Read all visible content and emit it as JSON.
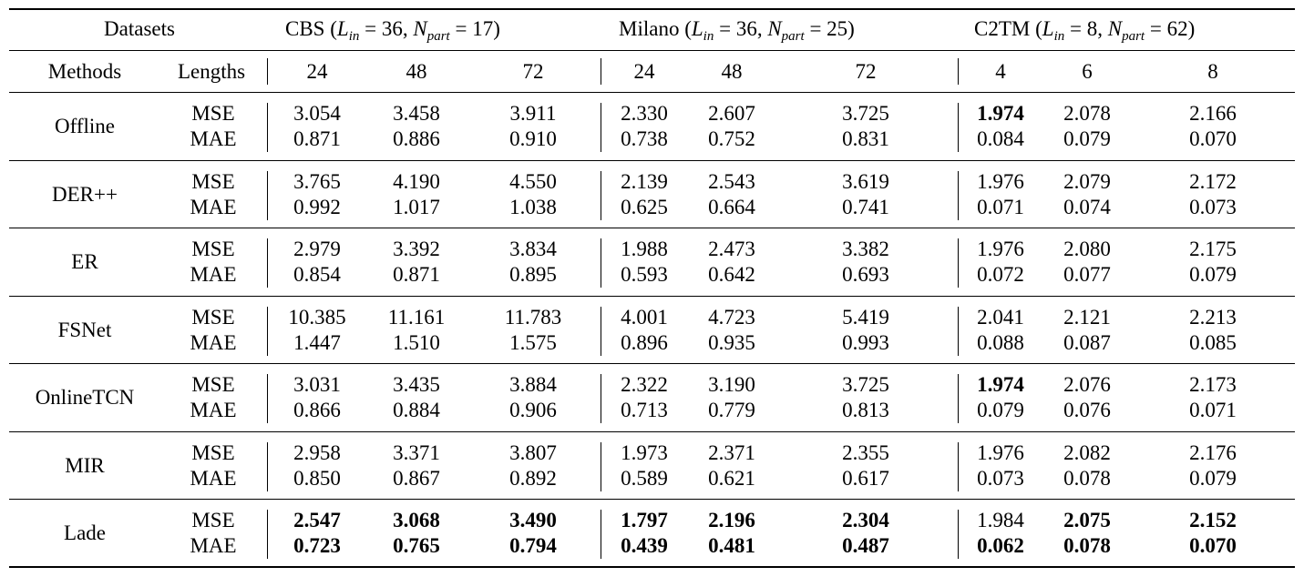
{
  "header": {
    "datasets_label": "Datasets",
    "methods_label": "Methods",
    "lengths_label": "Lengths",
    "groups": [
      {
        "name": "CBS",
        "l_in": "36",
        "n_part": "17",
        "lengths": [
          "24",
          "48",
          "72"
        ]
      },
      {
        "name": "Milano",
        "l_in": "36",
        "n_part": "25",
        "lengths": [
          "24",
          "48",
          "72"
        ]
      },
      {
        "name": "C2TM",
        "l_in": "8",
        "n_part": "62",
        "lengths": [
          "4",
          "6",
          "8"
        ]
      }
    ],
    "lin_sym": "L",
    "lin_sub": "in",
    "npart_sym": "N",
    "npart_sub": "part"
  },
  "metrics": [
    "MSE",
    "MAE"
  ],
  "rows": [
    {
      "method": "Offline",
      "mse": [
        "3.054",
        "3.458",
        "3.911",
        "2.330",
        "2.607",
        "3.725",
        "1.974",
        "2.078",
        "2.166"
      ],
      "mae": [
        "0.871",
        "0.886",
        "0.910",
        "0.738",
        "0.752",
        "0.831",
        "0.084",
        "0.079",
        "0.070"
      ],
      "mse_bold": [
        false,
        false,
        false,
        false,
        false,
        false,
        true,
        false,
        false
      ],
      "mae_bold": [
        false,
        false,
        false,
        false,
        false,
        false,
        false,
        false,
        false
      ]
    },
    {
      "method": "DER++",
      "mse": [
        "3.765",
        "4.190",
        "4.550",
        "2.139",
        "2.543",
        "3.619",
        "1.976",
        "2.079",
        "2.172"
      ],
      "mae": [
        "0.992",
        "1.017",
        "1.038",
        "0.625",
        "0.664",
        "0.741",
        "0.071",
        "0.074",
        "0.073"
      ],
      "mse_bold": [
        false,
        false,
        false,
        false,
        false,
        false,
        false,
        false,
        false
      ],
      "mae_bold": [
        false,
        false,
        false,
        false,
        false,
        false,
        false,
        false,
        false
      ]
    },
    {
      "method": "ER",
      "mse": [
        "2.979",
        "3.392",
        "3.834",
        "1.988",
        "2.473",
        "3.382",
        "1.976",
        "2.080",
        "2.175"
      ],
      "mae": [
        "0.854",
        "0.871",
        "0.895",
        "0.593",
        "0.642",
        "0.693",
        "0.072",
        "0.077",
        "0.079"
      ],
      "mse_bold": [
        false,
        false,
        false,
        false,
        false,
        false,
        false,
        false,
        false
      ],
      "mae_bold": [
        false,
        false,
        false,
        false,
        false,
        false,
        false,
        false,
        false
      ]
    },
    {
      "method": "FSNet",
      "mse": [
        "10.385",
        "11.161",
        "11.783",
        "4.001",
        "4.723",
        "5.419",
        "2.041",
        "2.121",
        "2.213"
      ],
      "mae": [
        "1.447",
        "1.510",
        "1.575",
        "0.896",
        "0.935",
        "0.993",
        "0.088",
        "0.087",
        "0.085"
      ],
      "mse_bold": [
        false,
        false,
        false,
        false,
        false,
        false,
        false,
        false,
        false
      ],
      "mae_bold": [
        false,
        false,
        false,
        false,
        false,
        false,
        false,
        false,
        false
      ]
    },
    {
      "method": "OnlineTCN",
      "mse": [
        "3.031",
        "3.435",
        "3.884",
        "2.322",
        "3.190",
        "3.725",
        "1.974",
        "2.076",
        "2.173"
      ],
      "mae": [
        "0.866",
        "0.884",
        "0.906",
        "0.713",
        "0.779",
        "0.813",
        "0.079",
        "0.076",
        "0.071"
      ],
      "mse_bold": [
        false,
        false,
        false,
        false,
        false,
        false,
        true,
        false,
        false
      ],
      "mae_bold": [
        false,
        false,
        false,
        false,
        false,
        false,
        false,
        false,
        false
      ]
    },
    {
      "method": "MIR",
      "mse": [
        "2.958",
        "3.371",
        "3.807",
        "1.973",
        "2.371",
        "2.355",
        "1.976",
        "2.082",
        "2.176"
      ],
      "mae": [
        "0.850",
        "0.867",
        "0.892",
        "0.589",
        "0.621",
        "0.617",
        "0.073",
        "0.078",
        "0.079"
      ],
      "mse_bold": [
        false,
        false,
        false,
        false,
        false,
        false,
        false,
        false,
        false
      ],
      "mae_bold": [
        false,
        false,
        false,
        false,
        false,
        false,
        false,
        false,
        false
      ]
    },
    {
      "method": "Lade",
      "mse": [
        "2.547",
        "3.068",
        "3.490",
        "1.797",
        "2.196",
        "2.304",
        "1.984",
        "2.075",
        "2.152"
      ],
      "mae": [
        "0.723",
        "0.765",
        "0.794",
        "0.439",
        "0.481",
        "0.487",
        "0.062",
        "0.078",
        "0.070"
      ],
      "mse_bold": [
        true,
        true,
        true,
        true,
        true,
        true,
        false,
        true,
        true
      ],
      "mae_bold": [
        true,
        true,
        true,
        true,
        true,
        true,
        true,
        true,
        true
      ]
    }
  ]
}
